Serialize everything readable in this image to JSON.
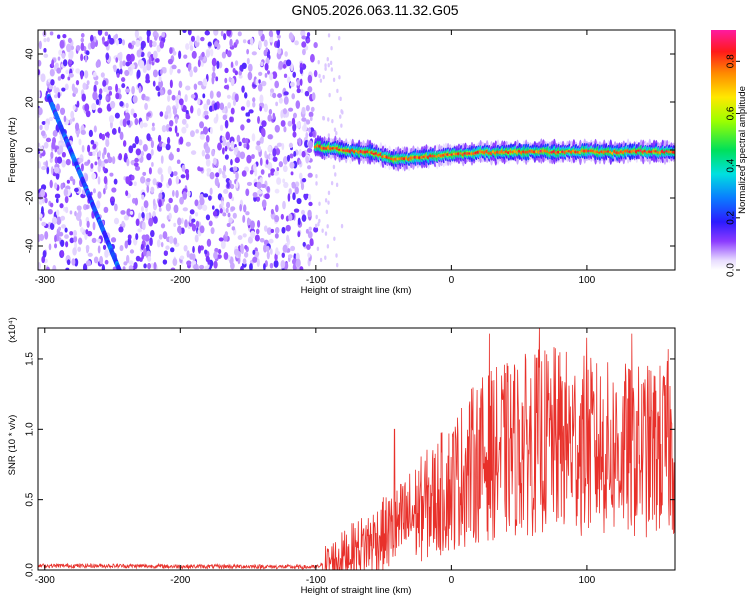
{
  "title": "GN05.2026.063.11.32.G05",
  "chart_data": [
    {
      "type": "heatmap",
      "xlabel": "Height of straight line (km)",
      "ylabel": "Frequency (Hz)",
      "xlim": [
        -305,
        165
      ],
      "ylim": [
        -50,
        50
      ],
      "xticks": [
        -300,
        -200,
        -100,
        0,
        100
      ],
      "yticks": [
        -40,
        -20,
        0,
        20,
        40
      ],
      "grid": false,
      "colorbar": {
        "label": "Normalized spectral amplitude",
        "range": [
          0.0,
          0.92
        ],
        "ticks": [
          0.0,
          0.2,
          0.4,
          0.6,
          0.8
        ],
        "tick_labels": [
          "0.0",
          "0.2",
          "0.4",
          "0.6",
          "0.8"
        ]
      },
      "features": [
        {
          "name": "noise region",
          "x_range": [
            -305,
            -100
          ],
          "y_range": [
            -50,
            50
          ],
          "amplitude": 0.12
        },
        {
          "name": "diagonal streak",
          "x": [
            -297,
            -245
          ],
          "y": [
            22,
            -50
          ],
          "amplitude": 0.35
        },
        {
          "name": "signal ridge",
          "x": [
            -100,
            -80,
            -60,
            -40,
            -20,
            0,
            20,
            40,
            60,
            80,
            100,
            120,
            140,
            165
          ],
          "y": [
            1.5,
            0,
            -1,
            -4,
            -3,
            -2,
            -1,
            -1,
            -0.5,
            -1,
            -0.5,
            -1,
            -0.5,
            -1
          ],
          "amplitude": 0.85
        }
      ]
    },
    {
      "type": "line",
      "xlabel": "Height of straight line (km)",
      "ylabel": "SNR (10 * v/v)",
      "y_multiplier": "(x10⁴)",
      "xlim": [
        -305,
        165
      ],
      "ylim": [
        0,
        1.72
      ],
      "xticks": [
        -300,
        -200,
        -100,
        0,
        100
      ],
      "yticks": [
        0.0,
        0.5,
        1.0,
        1.5
      ],
      "ytick_labels": [
        "0.0",
        "0.5",
        "1.0",
        "1.5"
      ],
      "grid": false,
      "series": [
        {
          "name": "SNR",
          "color": "#e8302a",
          "x": [
            -305,
            -250,
            -200,
            -150,
            -100,
            -90,
            -80,
            -70,
            -60,
            -50,
            -40,
            -30,
            -20,
            -10,
            0,
            10,
            20,
            30,
            40,
            50,
            60,
            70,
            80,
            90,
            100,
            110,
            120,
            130,
            140,
            150,
            165
          ],
          "y": [
            0.03,
            0.03,
            0.025,
            0.025,
            0.02,
            0.05,
            0.1,
            0.15,
            0.2,
            0.25,
            0.3,
            0.38,
            0.45,
            0.52,
            0.6,
            0.7,
            0.78,
            0.82,
            0.85,
            0.88,
            0.9,
            0.92,
            0.92,
            0.9,
            0.88,
            0.86,
            0.85,
            0.85,
            0.84,
            0.85,
            0.86
          ],
          "spikes": [
            {
              "x": -42,
              "y": 1.0
            },
            {
              "x": 28,
              "y": 1.68
            },
            {
              "x": 65,
              "y": 1.73
            },
            {
              "x": 100,
              "y": 1.65
            },
            {
              "x": 133,
              "y": 1.68
            },
            {
              "x": 160,
              "y": 1.57
            }
          ]
        }
      ]
    }
  ]
}
